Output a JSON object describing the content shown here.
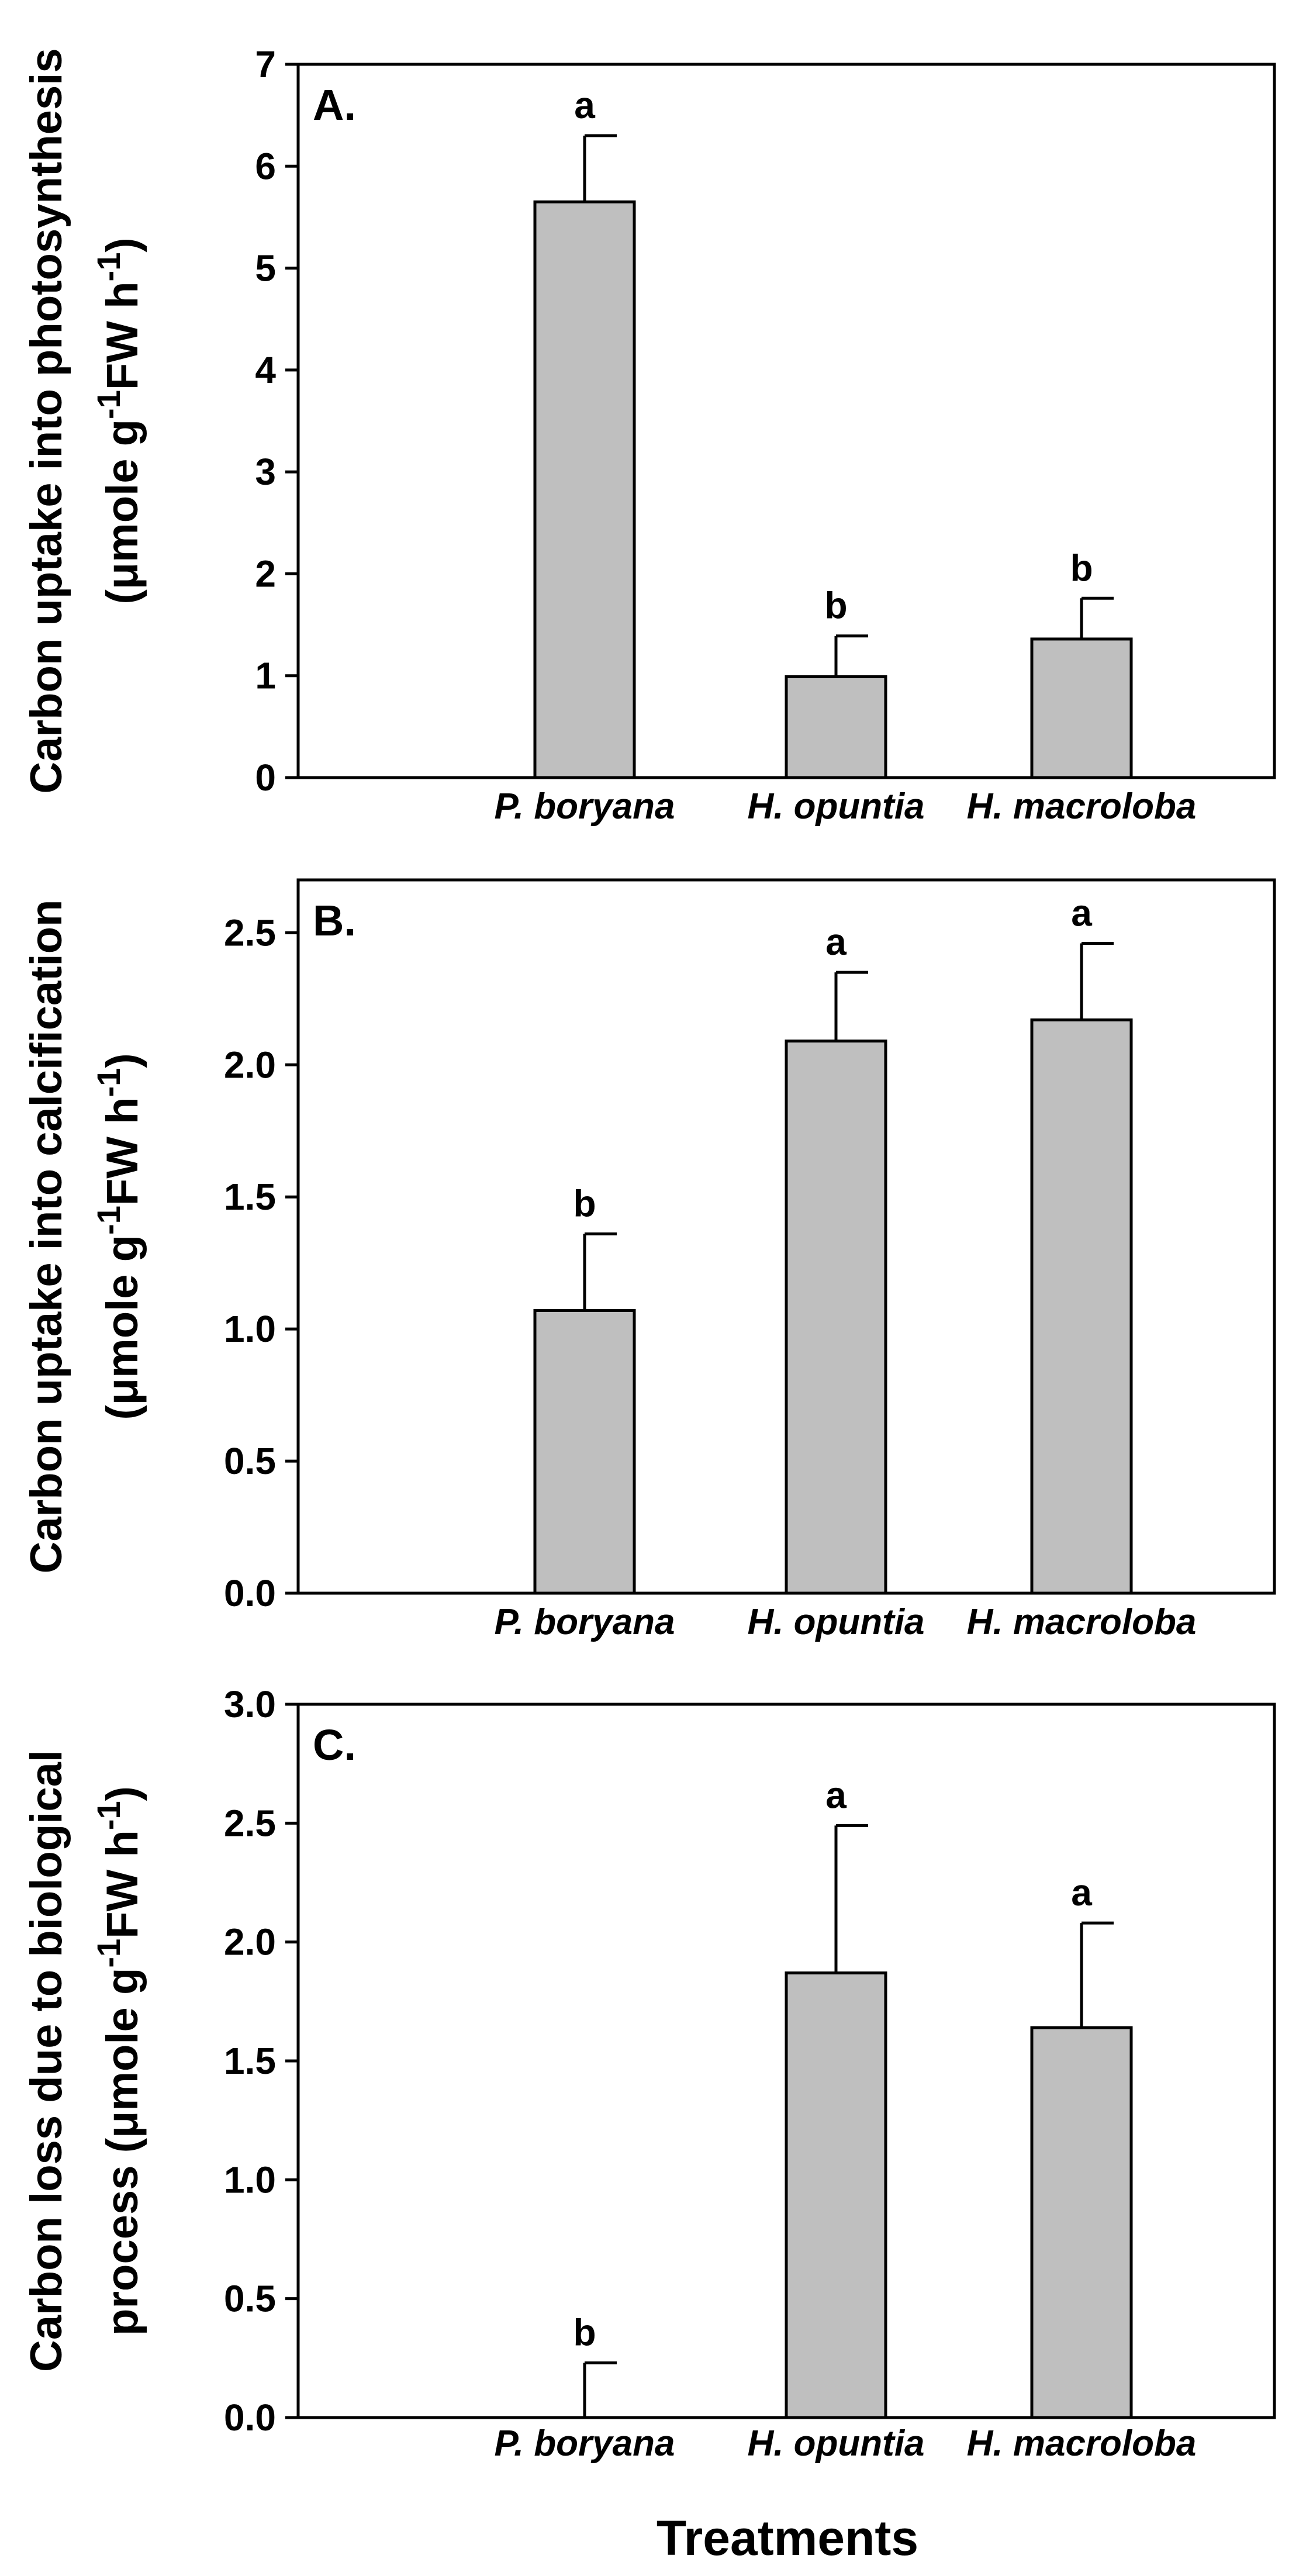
{
  "figure": {
    "x_axis_title": "Treatments",
    "colors": {
      "bar_fill": "#bfbfbf",
      "stroke": "#000000",
      "background": "#ffffff"
    }
  },
  "chart_data": [
    {
      "type": "bar",
      "panel_label": "A.",
      "title": "",
      "ylabel_line1": "Carbon uptake into photosynthesis",
      "ylabel_line2": "(μmole g",
      "ylabel_sup1": "-1",
      "ylabel_mid": "FW h",
      "ylabel_sup2": "-1",
      "ylabel_end": ")",
      "xlabel": "",
      "categories": [
        "P. boryana",
        "H. opuntia",
        "H. macroloba"
      ],
      "values": [
        5.65,
        0.99,
        1.36
      ],
      "errors": [
        0.65,
        0.4,
        0.4
      ],
      "significance": [
        "a",
        "b",
        "b"
      ],
      "ylim": [
        0,
        7
      ],
      "ticks": [
        0,
        1,
        2,
        3,
        4,
        5,
        6,
        7
      ],
      "tick_labels": [
        "0",
        "1",
        "2",
        "3",
        "4",
        "5",
        "6",
        "7"
      ]
    },
    {
      "type": "bar",
      "panel_label": "B.",
      "title": "",
      "ylabel_line1": "Carbon uptake into calcification",
      "ylabel_line2": "(μmole g",
      "ylabel_sup1": "-1",
      "ylabel_mid": "FW h",
      "ylabel_sup2": "-1",
      "ylabel_end": ")",
      "xlabel": "",
      "categories": [
        "P. boryana",
        "H. opuntia",
        "H. macroloba"
      ],
      "values": [
        1.07,
        2.09,
        2.17
      ],
      "errors": [
        0.29,
        0.26,
        0.29
      ],
      "significance": [
        "b",
        "a",
        "a"
      ],
      "ylim": [
        0,
        2.7
      ],
      "ticks": [
        0,
        0.5,
        1.0,
        1.5,
        2.0,
        2.5
      ],
      "tick_labels": [
        "0.0",
        "0.5",
        "1.0",
        "1.5",
        "2.0",
        "2.5"
      ]
    },
    {
      "type": "bar",
      "panel_label": "C.",
      "title": "",
      "ylabel_line1": "Carbon loss due to biological",
      "ylabel_line2": "process (μmole g",
      "ylabel_sup1": "-1",
      "ylabel_mid": "FW h",
      "ylabel_sup2": "-1",
      "ylabel_end": ")",
      "xlabel": "Treatments",
      "categories": [
        "P. boryana",
        "H. opuntia",
        "H. macroloba"
      ],
      "values": [
        0.0,
        1.87,
        1.64
      ],
      "errors": [
        0.23,
        0.62,
        0.44
      ],
      "significance": [
        "b",
        "a",
        "a"
      ],
      "ylim": [
        0,
        3.0
      ],
      "ticks": [
        0,
        0.5,
        1.0,
        1.5,
        2.0,
        2.5,
        3.0
      ],
      "tick_labels": [
        "0.0",
        "0.5",
        "1.0",
        "1.5",
        "2.0",
        "2.5",
        "3.0"
      ]
    }
  ]
}
